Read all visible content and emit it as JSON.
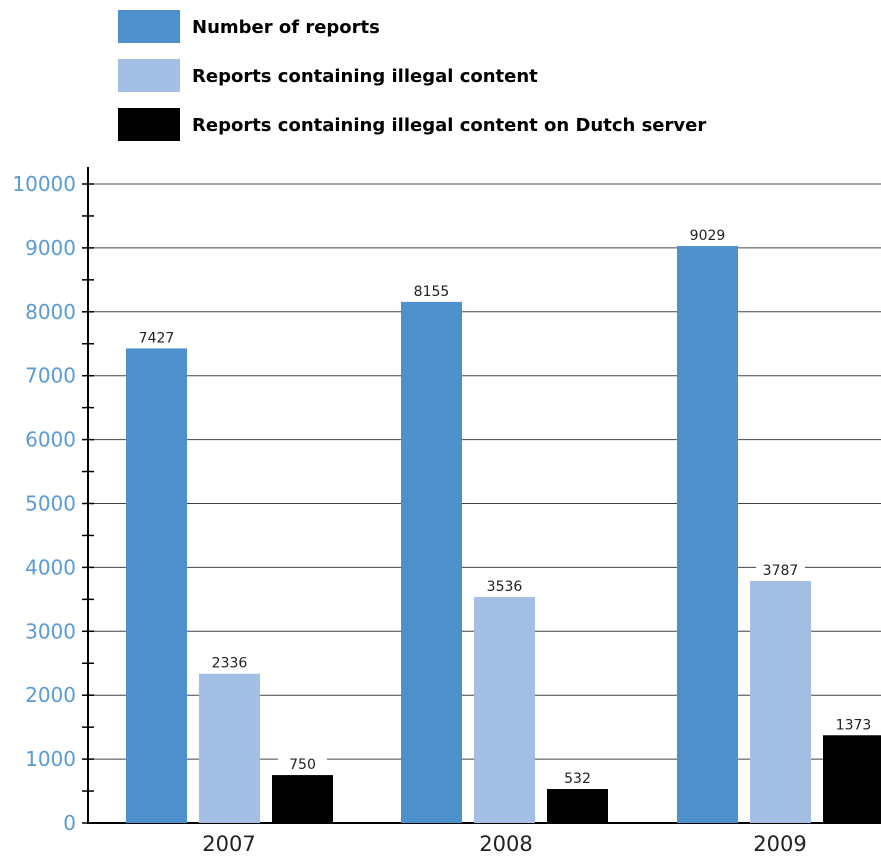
{
  "chart_data": {
    "type": "bar",
    "categories": [
      "2007",
      "2008",
      "2009"
    ],
    "series": [
      {
        "name": "Number of reports",
        "color": "#4e8fcd",
        "values": [
          7427,
          8155,
          9029
        ]
      },
      {
        "name": "Reports containing illegal content",
        "color": "#a4bfe4",
        "values": [
          2336,
          3536,
          3787
        ]
      },
      {
        "name": "Reports containing illegal content on Dutch server",
        "color": "#000000",
        "values": [
          750,
          532,
          1373
        ]
      }
    ],
    "data_labels": [
      [
        "7427",
        "8155",
        "9029"
      ],
      [
        "2336",
        "3536",
        "3787"
      ],
      [
        "750",
        "532",
        "1373"
      ]
    ],
    "yticks": [
      "0",
      "1000",
      "2000",
      "3000",
      "4000",
      "5000",
      "6000",
      "7000",
      "8000",
      "9000",
      "10000"
    ],
    "ylim": [
      0,
      10000
    ],
    "ytick_color": "#5b9bd5",
    "grid": true,
    "legend_position": "top-left"
  }
}
